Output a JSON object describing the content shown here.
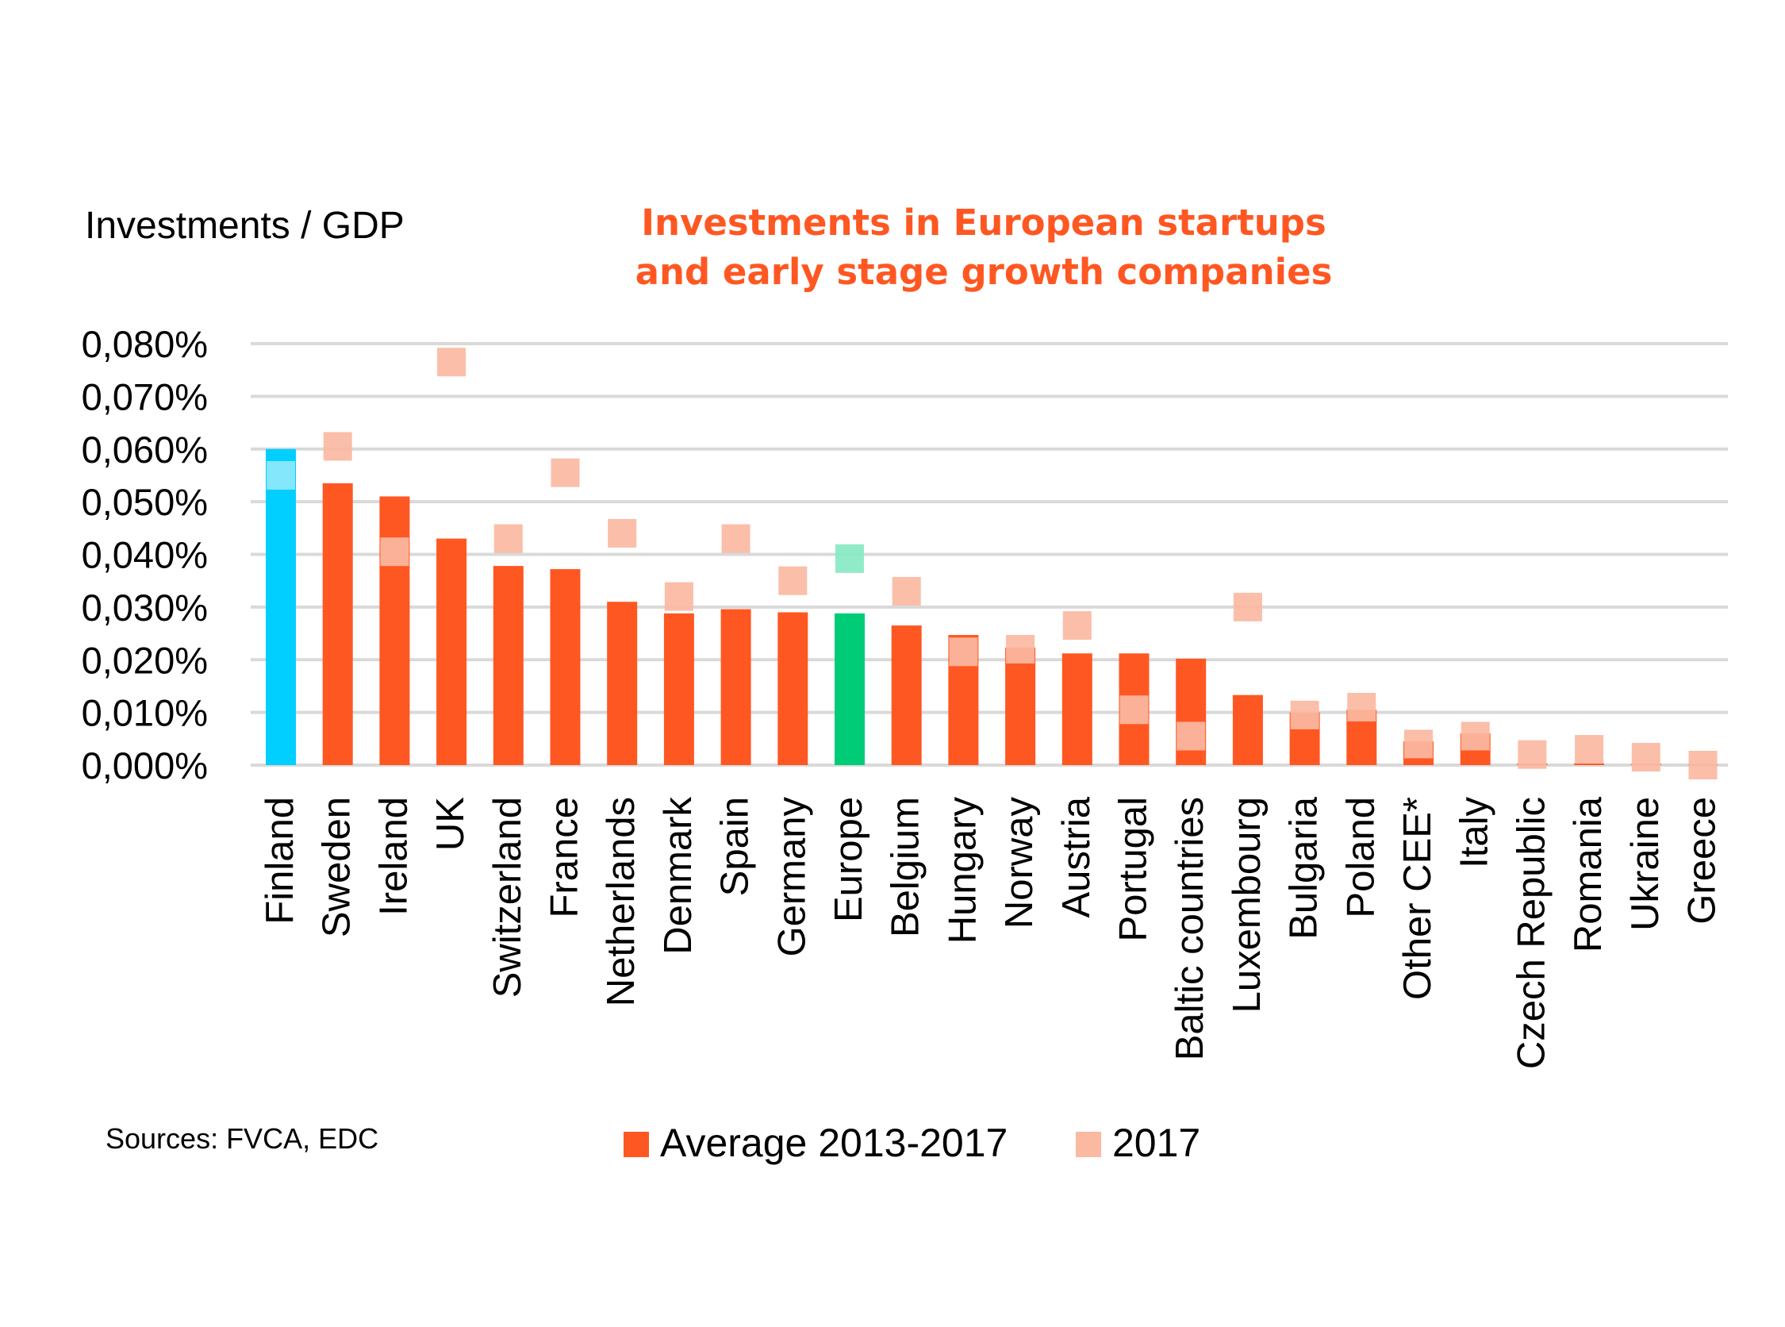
{
  "chart_data": {
    "type": "bar",
    "title_lines": [
      "Investments in European startups",
      "and early stage growth companies"
    ],
    "ylabel": "Investments / GDP",
    "xlabel": "",
    "ylim": [
      0,
      0.08
    ],
    "yticks": [
      "0,000%",
      "0,010%",
      "0,020%",
      "0,030%",
      "0,040%",
      "0,050%",
      "0,060%",
      "0,070%",
      "0,080%"
    ],
    "grid": true,
    "categories": [
      "Finland",
      "Sweden",
      "Ireland",
      "UK",
      "Switzerland",
      "France",
      "Netherlands",
      "Denmark",
      "Spain",
      "Germany",
      "Europe",
      "Belgium",
      "Hungary",
      "Norway",
      "Austria",
      "Portugal",
      "Baltic countries",
      "Luxembourg",
      "Bulgaria",
      "Poland",
      "Other CEE*",
      "Italy",
      "Czech Republic",
      "Romania",
      "Ukraine",
      "Greece"
    ],
    "series": [
      {
        "name": "Average 2013-2017",
        "kind": "bar",
        "values": [
          0.06,
          0.0535,
          0.051,
          0.043,
          0.0378,
          0.0372,
          0.031,
          0.0288,
          0.0296,
          0.029,
          0.0288,
          0.0265,
          0.0247,
          0.0223,
          0.0212,
          0.0212,
          0.0202,
          0.0133,
          0.01,
          0.0105,
          0.0045,
          0.006,
          0.0003,
          0.0003,
          0.0002,
          0.0001
        ]
      },
      {
        "name": "2017",
        "kind": "marker",
        "values": [
          0.055,
          0.0605,
          0.0405,
          0.0765,
          0.043,
          0.0555,
          0.044,
          0.032,
          0.043,
          0.035,
          0.0392,
          0.033,
          0.0215,
          0.022,
          0.0265,
          0.0105,
          0.0055,
          0.03,
          0.0095,
          0.011,
          0.004,
          0.0055,
          0.002,
          0.003,
          0.0015,
          0.0
        ]
      }
    ],
    "highlights": {
      "Finland": {
        "bar": "#00cfff",
        "marker": "#8fe9fb"
      },
      "Europe": {
        "bar": "#00cc77",
        "marker": "#88e9c3"
      }
    },
    "colors": {
      "bar": "#ff5722",
      "marker": "#fbb9a2",
      "grid": "#d9d9d9",
      "title": "#ff5722",
      "text": "#000000"
    },
    "legend": {
      "position": "bottom",
      "entries": [
        "Average 2013-2017",
        "2017"
      ]
    },
    "source_note": "Sources: FVCA, EDC"
  }
}
